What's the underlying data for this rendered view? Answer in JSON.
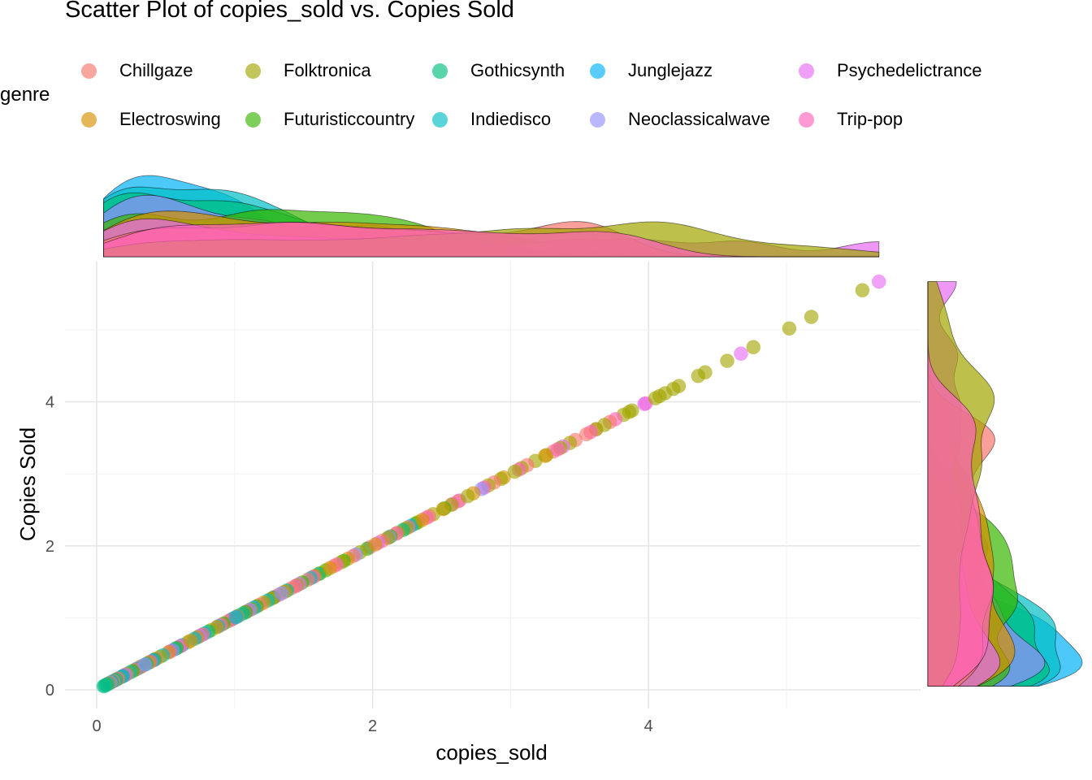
{
  "chart_data": {
    "type": "scatter",
    "title": "Scatter Plot of copies_sold vs. Copies Sold",
    "xlabel": "copies_sold",
    "ylabel": "Copies Sold",
    "xlim": [
      -0.05,
      5.9
    ],
    "ylim": [
      -0.1,
      5.9
    ],
    "x_ticks": [
      "0",
      "2",
      "4"
    ],
    "y_ticks": [
      "0",
      "2",
      "4"
    ],
    "grid": true,
    "legend": {
      "title": "genre",
      "placement": "top",
      "entries": [
        {
          "name": "Chillgaze",
          "color": "#F8766D"
        },
        {
          "name": "Electroswing",
          "color": "#D89000"
        },
        {
          "name": "Folktronica",
          "color": "#A3A500"
        },
        {
          "name": "Futuristiccountry",
          "color": "#39B600"
        },
        {
          "name": "Gothicsynth",
          "color": "#00BF7D"
        },
        {
          "name": "Indiedisco",
          "color": "#00BFC4"
        },
        {
          "name": "Junglejazz",
          "color": "#00B0F6"
        },
        {
          "name": "Neoclassicalwave",
          "color": "#9590FF"
        },
        {
          "name": "Psychedelictrance",
          "color": "#E76BF3"
        },
        {
          "name": "Trip-pop",
          "color": "#FF62BC"
        }
      ]
    },
    "series": [
      {
        "name": "Chillgaze",
        "color": "#F8766D",
        "x": [
          0.12,
          0.28,
          0.43,
          0.61,
          0.77,
          0.95,
          1.18,
          1.32,
          1.41,
          1.53,
          1.72,
          1.86,
          2.07,
          2.26,
          2.41,
          2.62,
          2.88,
          3.12,
          3.31,
          3.47,
          3.55,
          3.62,
          3.72
        ]
      },
      {
        "name": "Electroswing",
        "color": "#D89000",
        "x": [
          0.09,
          0.22,
          0.31,
          0.38,
          0.52,
          0.68,
          0.73,
          0.87,
          1.02,
          1.21,
          1.36,
          1.58,
          1.69,
          1.82,
          2.02,
          2.18,
          2.36,
          2.51,
          2.73,
          2.95,
          3.25
        ]
      },
      {
        "name": "Folktronica",
        "color": "#A3A500",
        "x": [
          0.16,
          0.33,
          0.46,
          0.66,
          0.83,
          0.98,
          1.12,
          1.26,
          1.45,
          1.62,
          1.77,
          1.91,
          2.11,
          2.24,
          2.33,
          2.44,
          2.57,
          2.69,
          2.84,
          2.93,
          3.03,
          3.08,
          3.18,
          3.26,
          3.36,
          3.43,
          3.62,
          3.68,
          3.82,
          3.86,
          3.88,
          4.05,
          4.08,
          4.12,
          4.18,
          4.22,
          4.36,
          4.41,
          4.57,
          4.76,
          5.02,
          5.18,
          5.55
        ]
      },
      {
        "name": "Futuristiccountry",
        "color": "#39B600",
        "x": [
          0.07,
          0.14,
          0.26,
          0.42,
          0.58,
          0.92,
          1.08,
          1.16,
          1.28,
          1.49,
          1.66,
          1.79,
          1.96,
          2.13,
          2.31,
          2.52
        ]
      },
      {
        "name": "Gothicsynth",
        "color": "#00BF7D",
        "x": [
          0.05,
          0.11,
          0.19,
          0.36,
          0.57,
          0.81,
          0.99,
          1.06,
          1.38,
          1.61,
          2.22
        ]
      },
      {
        "name": "Indiedisco",
        "color": "#00BFC4",
        "x": [
          0.06,
          0.13,
          0.24,
          0.48,
          0.71,
          0.88,
          1.03,
          1.24,
          1.55
        ]
      },
      {
        "name": "Junglejazz",
        "color": "#00B0F6",
        "x": [
          0.08,
          0.18,
          0.29,
          0.41,
          0.62,
          0.78,
          1.01,
          1.14,
          2.28
        ]
      },
      {
        "name": "Neoclassicalwave",
        "color": "#9590FF",
        "x": [
          0.1,
          0.21,
          0.35,
          0.55,
          0.74,
          1.11,
          1.34,
          1.88,
          2.12,
          2.79
        ]
      },
      {
        "name": "Psychedelictrance",
        "color": "#E76BF3",
        "x": [
          0.15,
          0.32,
          0.6,
          0.97,
          1.47,
          2.04,
          2.63,
          3.38,
          3.97,
          4.67,
          5.67
        ]
      },
      {
        "name": "Trip-pop",
        "color": "#FF62BC",
        "x": [
          0.2,
          0.39,
          0.53,
          0.75,
          0.9,
          1.09,
          1.29,
          1.44,
          1.57,
          1.74,
          1.98,
          2.17,
          2.39,
          2.58,
          2.81,
          3.06,
          3.34,
          3.58,
          3.76,
          3.98
        ]
      }
    ]
  }
}
